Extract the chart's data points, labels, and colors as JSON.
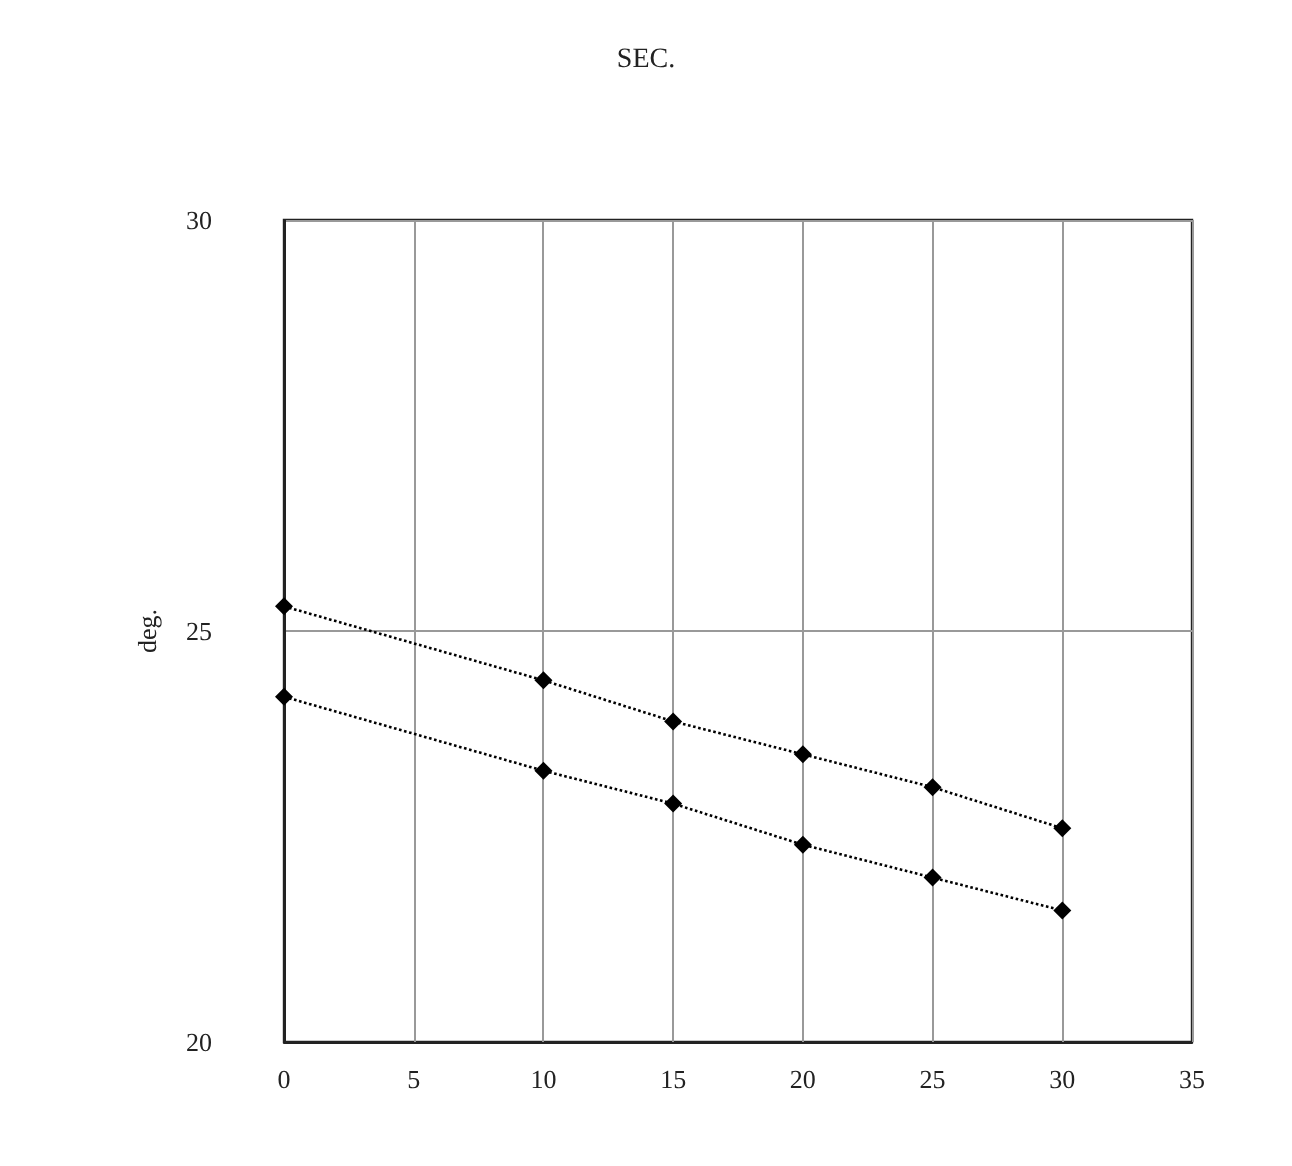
{
  "chart_data": {
    "type": "line",
    "title": "SEC.",
    "ylabel": "deg.",
    "x": [
      0,
      10,
      15,
      20,
      25,
      30
    ],
    "series": [
      {
        "color": "#000000",
        "values": [
          25.3,
          24.4,
          23.9,
          23.5,
          23.1,
          22.6
        ]
      },
      {
        "color": "#000000",
        "values": [
          24.2,
          23.3,
          22.9,
          22.4,
          22.0,
          21.6
        ]
      }
    ],
    "xlim": [
      0,
      35
    ],
    "xticks": [
      0,
      5,
      10,
      15,
      20,
      25,
      30,
      35
    ],
    "ylim": [
      20,
      30
    ],
    "yticks": [
      20,
      25,
      30
    ],
    "grid": true,
    "marker": "diamond",
    "line_style": "dotted"
  }
}
